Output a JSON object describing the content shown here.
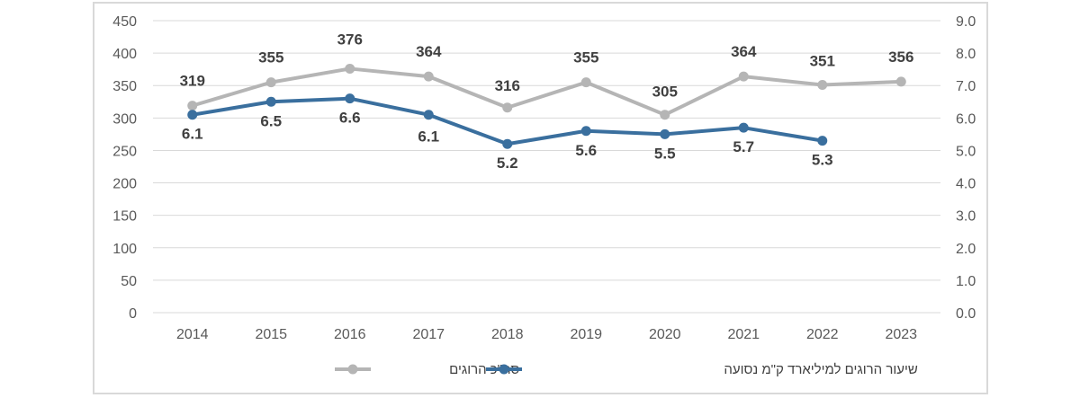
{
  "chart_data": {
    "type": "line",
    "categories": [
      "2014",
      "2015",
      "2016",
      "2017",
      "2018",
      "2019",
      "2020",
      "2021",
      "2022",
      "2023"
    ],
    "y_left": {
      "min": 0,
      "max": 450,
      "step": 50,
      "ticks": [
        "0",
        "50",
        "100",
        "150",
        "200",
        "250",
        "300",
        "350",
        "400",
        "450"
      ]
    },
    "y_right": {
      "min": 0,
      "max": 9,
      "step": 1,
      "ticks": [
        "0.0",
        "1.0",
        "2.0",
        "3.0",
        "4.0",
        "5.0",
        "6.0",
        "7.0",
        "8.0",
        "9.0"
      ]
    },
    "series": [
      {
        "name": "סה\"כ הרוגים",
        "axis": "left",
        "color": "#b5b5b5",
        "values": [
          319,
          355,
          376,
          364,
          316,
          355,
          305,
          364,
          351,
          356
        ],
        "labels": [
          "319",
          "355",
          "376",
          "364",
          "316",
          "355",
          "305",
          "364",
          "351",
          "356"
        ]
      },
      {
        "name": "שיעור הרוגים למיליארד ק\"מ נסועה",
        "axis": "right",
        "color": "#3a6f9e",
        "values": [
          6.1,
          6.5,
          6.6,
          6.1,
          5.2,
          5.6,
          5.5,
          5.7,
          5.3,
          null
        ],
        "labels": [
          "6.1",
          "6.5",
          "6.6",
          "6.1",
          "5.2",
          "5.6",
          "5.5",
          "5.7",
          "5.3",
          ""
        ]
      }
    ],
    "grid": true,
    "legend_position": "bottom"
  }
}
